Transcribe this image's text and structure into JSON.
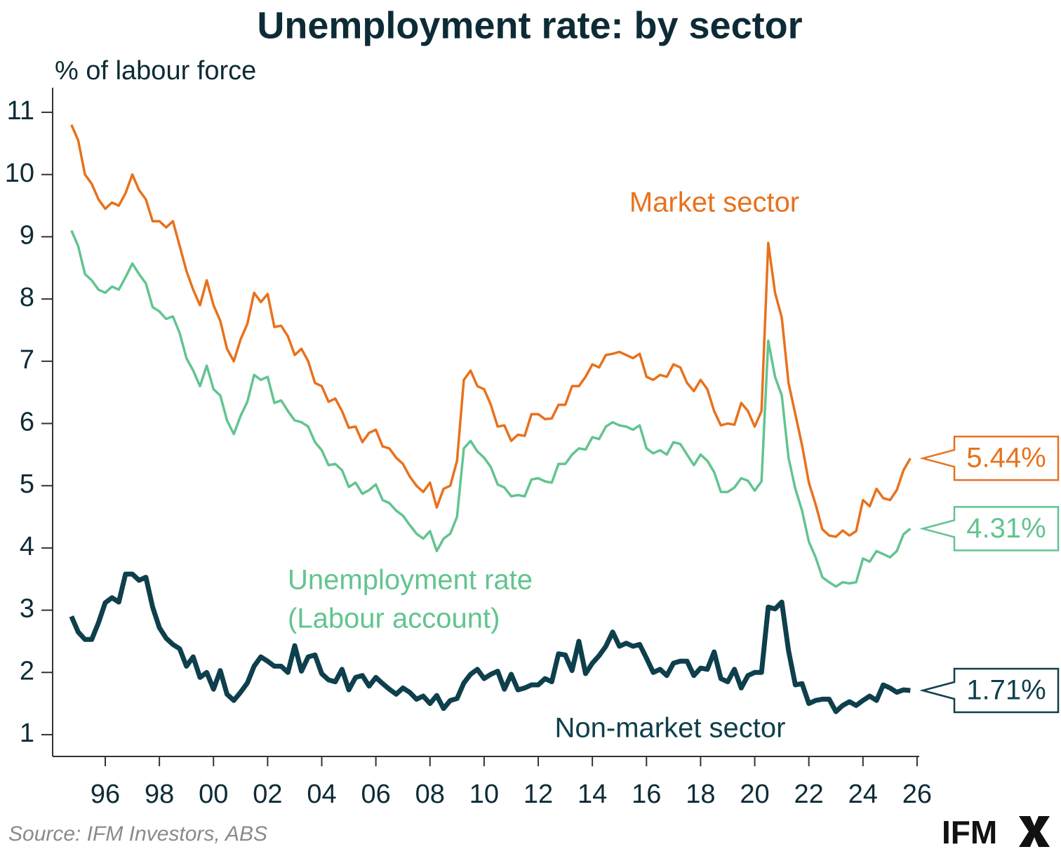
{
  "chart_data": {
    "type": "line",
    "title": "Unemployment rate: by sector",
    "y_label": "% of labour force",
    "source": "Source: IFM Investors, ABS",
    "logo": "IFM",
    "xlim": [
      1994.055,
      2026.08
    ],
    "xticks": [
      {
        "value": 1996,
        "label": "96"
      },
      {
        "value": 1998,
        "label": "98"
      },
      {
        "value": 2000,
        "label": "00"
      },
      {
        "value": 2002,
        "label": "02"
      },
      {
        "value": 2004,
        "label": "04"
      },
      {
        "value": 2006,
        "label": "06"
      },
      {
        "value": 2008,
        "label": "08"
      },
      {
        "value": 2010,
        "label": "10"
      },
      {
        "value": 2012,
        "label": "12"
      },
      {
        "value": 2014,
        "label": "14"
      },
      {
        "value": 2016,
        "label": "16"
      },
      {
        "value": 2018,
        "label": "18"
      },
      {
        "value": 2020,
        "label": "20"
      },
      {
        "value": 2022,
        "label": "22"
      },
      {
        "value": 2024,
        "label": "24"
      },
      {
        "value": 2026,
        "label": "26"
      }
    ],
    "ylim": [
      0.65,
      11.395
    ],
    "yticks": [
      1,
      2,
      3,
      4,
      5,
      6,
      7,
      8,
      9,
      10,
      11
    ],
    "grid": false,
    "x": [
      1994.75,
      1995,
      1995.25,
      1995.5,
      1995.75,
      1996,
      1996.25,
      1996.5,
      1996.75,
      1997,
      1997.25,
      1997.5,
      1997.75,
      1998,
      1998.25,
      1998.5,
      1998.75,
      1999,
      1999.25,
      1999.5,
      1999.75,
      2000,
      2000.25,
      2000.5,
      2000.75,
      2001,
      2001.25,
      2001.5,
      2001.75,
      2002,
      2002.25,
      2002.5,
      2002.75,
      2003,
      2003.25,
      2003.5,
      2003.75,
      2004,
      2004.25,
      2004.5,
      2004.75,
      2005,
      2005.25,
      2005.5,
      2005.75,
      2006,
      2006.25,
      2006.5,
      2006.75,
      2007,
      2007.25,
      2007.5,
      2007.75,
      2008,
      2008.25,
      2008.5,
      2008.75,
      2009,
      2009.25,
      2009.5,
      2009.75,
      2010,
      2010.25,
      2010.5,
      2010.75,
      2011,
      2011.25,
      2011.5,
      2011.75,
      2012,
      2012.25,
      2012.5,
      2012.75,
      2013,
      2013.25,
      2013.5,
      2013.75,
      2014,
      2014.25,
      2014.5,
      2014.75,
      2015,
      2015.25,
      2015.5,
      2015.75,
      2016,
      2016.25,
      2016.5,
      2016.75,
      2017,
      2017.25,
      2017.5,
      2017.75,
      2018,
      2018.25,
      2018.5,
      2018.75,
      2019,
      2019.25,
      2019.5,
      2019.75,
      2020,
      2020.25,
      2020.5,
      2020.75,
      2021,
      2021.25,
      2021.5,
      2021.75,
      2022,
      2022.25,
      2022.5,
      2022.75,
      2023,
      2023.25,
      2023.5,
      2023.75,
      2024,
      2024.25,
      2024.5,
      2024.75,
      2025,
      2025.25,
      2025.5,
      2025.75
    ],
    "series": [
      {
        "name": "Market sector",
        "label_lines": [
          "Market sector"
        ],
        "color": "#e8711c",
        "width": 3.5,
        "end_label": "5.44%",
        "values": [
          10.8,
          10.55,
          10.0,
          9.85,
          9.6,
          9.45,
          9.55,
          9.5,
          9.7,
          10.0,
          9.75,
          9.6,
          9.25,
          9.25,
          9.15,
          9.25,
          8.85,
          8.45,
          8.15,
          7.9,
          8.3,
          7.9,
          7.65,
          7.2,
          7.0,
          7.35,
          7.6,
          8.1,
          7.95,
          8.08,
          7.55,
          7.57,
          7.4,
          7.1,
          7.2,
          7.0,
          6.65,
          6.6,
          6.35,
          6.4,
          6.2,
          5.93,
          5.95,
          5.7,
          5.85,
          5.9,
          5.63,
          5.6,
          5.45,
          5.35,
          5.15,
          5.0,
          4.9,
          5.05,
          4.65,
          4.95,
          5.0,
          5.4,
          6.7,
          6.85,
          6.6,
          6.55,
          6.3,
          5.95,
          5.97,
          5.72,
          5.82,
          5.8,
          6.15,
          6.15,
          6.07,
          6.08,
          6.3,
          6.3,
          6.6,
          6.6,
          6.75,
          6.95,
          6.9,
          7.1,
          7.12,
          7.15,
          7.1,
          7.05,
          7.12,
          6.75,
          6.7,
          6.78,
          6.75,
          6.95,
          6.9,
          6.65,
          6.52,
          6.7,
          6.55,
          6.2,
          5.97,
          6.0,
          5.98,
          6.33,
          6.2,
          5.95,
          6.2,
          8.9,
          8.1,
          7.7,
          6.65,
          6.15,
          5.65,
          5.05,
          4.7,
          4.3,
          4.2,
          4.18,
          4.28,
          4.2,
          4.27,
          4.77,
          4.67,
          4.95,
          4.8,
          4.77,
          4.93,
          5.25,
          5.44
        ]
      },
      {
        "name": "Unemployment rate (Labour account)",
        "label_lines": [
          "Unemployment rate",
          "(Labour account)"
        ],
        "color": "#62c48f",
        "width": 3.5,
        "end_label": "4.31%",
        "values": [
          9.1,
          8.85,
          8.4,
          8.3,
          8.15,
          8.1,
          8.2,
          8.15,
          8.35,
          8.57,
          8.4,
          8.25,
          7.87,
          7.8,
          7.68,
          7.72,
          7.45,
          7.05,
          6.85,
          6.6,
          6.93,
          6.55,
          6.45,
          6.05,
          5.83,
          6.12,
          6.35,
          6.78,
          6.7,
          6.75,
          6.33,
          6.37,
          6.2,
          6.05,
          6.02,
          5.95,
          5.7,
          5.57,
          5.33,
          5.35,
          5.25,
          4.98,
          5.05,
          4.87,
          4.93,
          5.02,
          4.77,
          4.72,
          4.6,
          4.52,
          4.37,
          4.23,
          4.15,
          4.27,
          3.95,
          4.15,
          4.23,
          4.5,
          5.6,
          5.72,
          5.55,
          5.45,
          5.3,
          5.02,
          4.97,
          4.83,
          4.85,
          4.83,
          5.1,
          5.12,
          5.07,
          5.05,
          5.35,
          5.35,
          5.5,
          5.6,
          5.58,
          5.78,
          5.75,
          5.95,
          6.02,
          5.97,
          5.95,
          5.9,
          5.97,
          5.6,
          5.52,
          5.57,
          5.5,
          5.7,
          5.67,
          5.5,
          5.33,
          5.5,
          5.4,
          5.22,
          4.9,
          4.9,
          4.97,
          5.12,
          5.08,
          4.92,
          5.07,
          7.33,
          6.75,
          6.45,
          5.45,
          4.95,
          4.6,
          4.1,
          3.85,
          3.53,
          3.45,
          3.38,
          3.45,
          3.43,
          3.45,
          3.83,
          3.78,
          3.95,
          3.9,
          3.85,
          3.95,
          4.22,
          4.31
        ]
      },
      {
        "name": "Non-market sector",
        "label_lines": [
          "Non-market sector"
        ],
        "color": "#0e3f4c",
        "width": 7,
        "end_label": "1.71%",
        "values": [
          2.9,
          2.65,
          2.53,
          2.53,
          2.8,
          3.12,
          3.2,
          3.13,
          3.58,
          3.58,
          3.48,
          3.53,
          3.05,
          2.72,
          2.55,
          2.45,
          2.38,
          2.1,
          2.25,
          1.92,
          2.0,
          1.73,
          2.03,
          1.65,
          1.55,
          1.68,
          1.83,
          2.1,
          2.25,
          2.18,
          2.1,
          2.1,
          2.0,
          2.43,
          2.02,
          2.25,
          2.28,
          1.98,
          1.88,
          1.85,
          2.05,
          1.72,
          1.92,
          1.95,
          1.78,
          1.92,
          1.82,
          1.73,
          1.65,
          1.75,
          1.68,
          1.57,
          1.62,
          1.5,
          1.63,
          1.42,
          1.55,
          1.58,
          1.83,
          1.97,
          2.05,
          1.9,
          1.97,
          2.02,
          1.73,
          1.97,
          1.72,
          1.75,
          1.8,
          1.8,
          1.9,
          1.85,
          2.3,
          2.28,
          2.03,
          2.5,
          1.98,
          2.15,
          2.27,
          2.42,
          2.65,
          2.42,
          2.47,
          2.42,
          2.45,
          2.23,
          2.0,
          2.05,
          1.95,
          2.15,
          2.18,
          2.18,
          1.95,
          2.07,
          2.05,
          2.33,
          1.9,
          1.85,
          2.05,
          1.75,
          1.95,
          2.0,
          2.0,
          3.05,
          3.02,
          3.13,
          2.35,
          1.8,
          1.82,
          1.5,
          1.55,
          1.57,
          1.57,
          1.37,
          1.47,
          1.53,
          1.47,
          1.55,
          1.62,
          1.55,
          1.8,
          1.75,
          1.68,
          1.72,
          1.71
        ]
      }
    ]
  }
}
